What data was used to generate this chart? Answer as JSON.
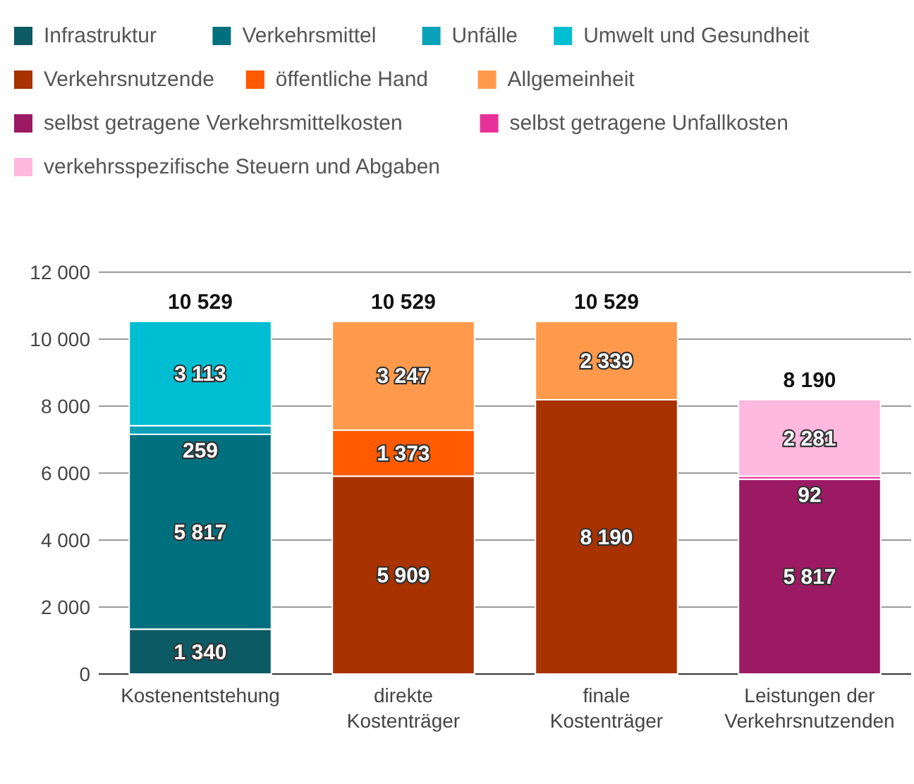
{
  "chart_data": {
    "type": "bar",
    "stacked": true,
    "legend": "top",
    "grid": "y",
    "categories": [
      "Kostenentstehung",
      "direkte Kostenträger",
      "finale Kostenträger",
      "Leistungen der Verkehrsnutzenden"
    ],
    "ylim": [
      0,
      12000
    ],
    "yticks": [
      0,
      {
        "value": 2000,
        "label": "2 000"
      },
      {
        "value": 4000,
        "label": "4 000"
      },
      {
        "value": 6000,
        "label": "6 000"
      },
      {
        "value": 8000,
        "label": "8 000"
      },
      {
        "value": 10000,
        "label": "10 000"
      },
      {
        "value": 12000,
        "label": "12 000"
      }
    ],
    "series": [
      {
        "name": "Infrastruktur",
        "color": "#0c5a64",
        "values": [
          1340,
          null,
          null,
          null
        ],
        "value_labels": [
          "1 340",
          null,
          null,
          null
        ]
      },
      {
        "name": "Verkehrsmittel",
        "color": "#00707f",
        "values": [
          5817,
          null,
          null,
          null
        ],
        "value_labels": [
          "5 817",
          null,
          null,
          null
        ]
      },
      {
        "name": "Unfälle",
        "color": "#0aa2b8",
        "values": [
          259,
          null,
          null,
          null
        ],
        "value_labels": [
          "259",
          null,
          null,
          null
        ]
      },
      {
        "name": "Umwelt und Gesundheit",
        "color": "#00bed2",
        "values": [
          3113,
          null,
          null,
          null
        ],
        "value_labels": [
          "3 113",
          null,
          null,
          null
        ]
      },
      {
        "name": "Verkehrsnutzende",
        "color": "#a83200",
        "values": [
          null,
          5909,
          8190,
          null
        ],
        "value_labels": [
          null,
          "5 909",
          "8 190",
          null
        ]
      },
      {
        "name": "öffentliche Hand",
        "color": "#ff5a00",
        "values": [
          null,
          1373,
          null,
          null
        ],
        "value_labels": [
          null,
          "1 373",
          null,
          null
        ]
      },
      {
        "name": "Allgemeinheit",
        "color": "#ff9a4c",
        "values": [
          null,
          3247,
          2339,
          null
        ],
        "value_labels": [
          null,
          "3 247",
          "2 339",
          null
        ]
      },
      {
        "name": "selbst getragene Verkehrsmittelkosten",
        "color": "#9c1a64",
        "values": [
          null,
          null,
          null,
          5817
        ],
        "value_labels": [
          null,
          null,
          null,
          "5 817"
        ]
      },
      {
        "name": "selbst getragene Unfallkosten",
        "color": "#e8309a",
        "values": [
          null,
          null,
          null,
          92
        ],
        "value_labels": [
          null,
          null,
          null,
          "92"
        ]
      },
      {
        "name": "verkehrsspezifische Steuern und Abgaben",
        "color": "#ffb8de",
        "values": [
          null,
          null,
          null,
          2281
        ],
        "value_labels": [
          null,
          null,
          null,
          "2 281"
        ]
      }
    ],
    "totals": [
      "10 529",
      "10 529",
      "10 529",
      "8 190"
    ]
  }
}
